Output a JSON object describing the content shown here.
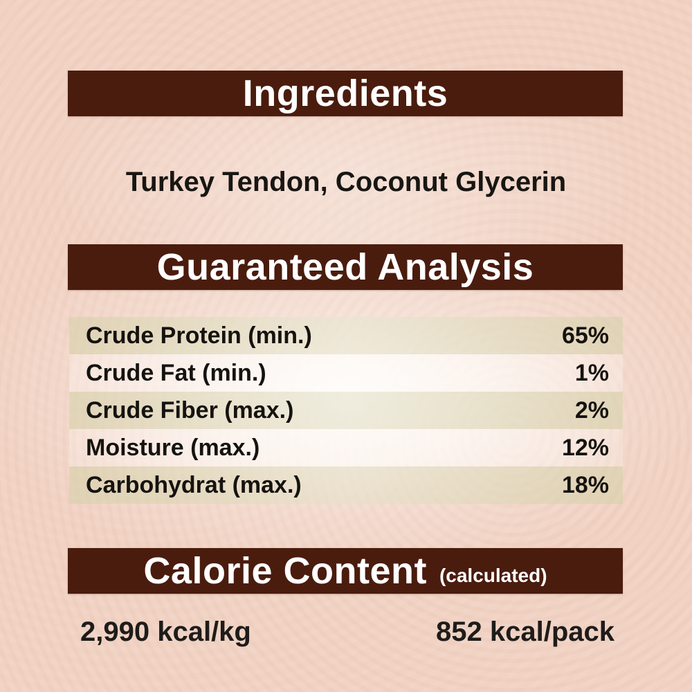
{
  "colors": {
    "header_bar_brown": "#4a1c0e",
    "background_peach": "#f1d3c4",
    "row_shaded_green": "#e8e5ce",
    "text_dark": "#151310",
    "text_white": "#ffffff"
  },
  "ingredients": {
    "header": "Ingredients",
    "list": "Turkey Tendon, Coconut Glycerin"
  },
  "analysis": {
    "header": "Guaranteed Analysis",
    "rows": [
      {
        "label": "Crude Protein (min.)",
        "value": "65%"
      },
      {
        "label": "Crude Fat (min.)",
        "value": "1%"
      },
      {
        "label": "Crude Fiber (max.)",
        "value": "2%"
      },
      {
        "label": "Moisture (max.)",
        "value": "12%"
      },
      {
        "label": "Carbohydrat (max.)",
        "value": "18%"
      }
    ]
  },
  "calorie": {
    "header": "Calorie Content",
    "header_note": "(calculated)",
    "per_kg": "2,990 kcal/kg",
    "per_pack": "852 kcal/pack"
  }
}
